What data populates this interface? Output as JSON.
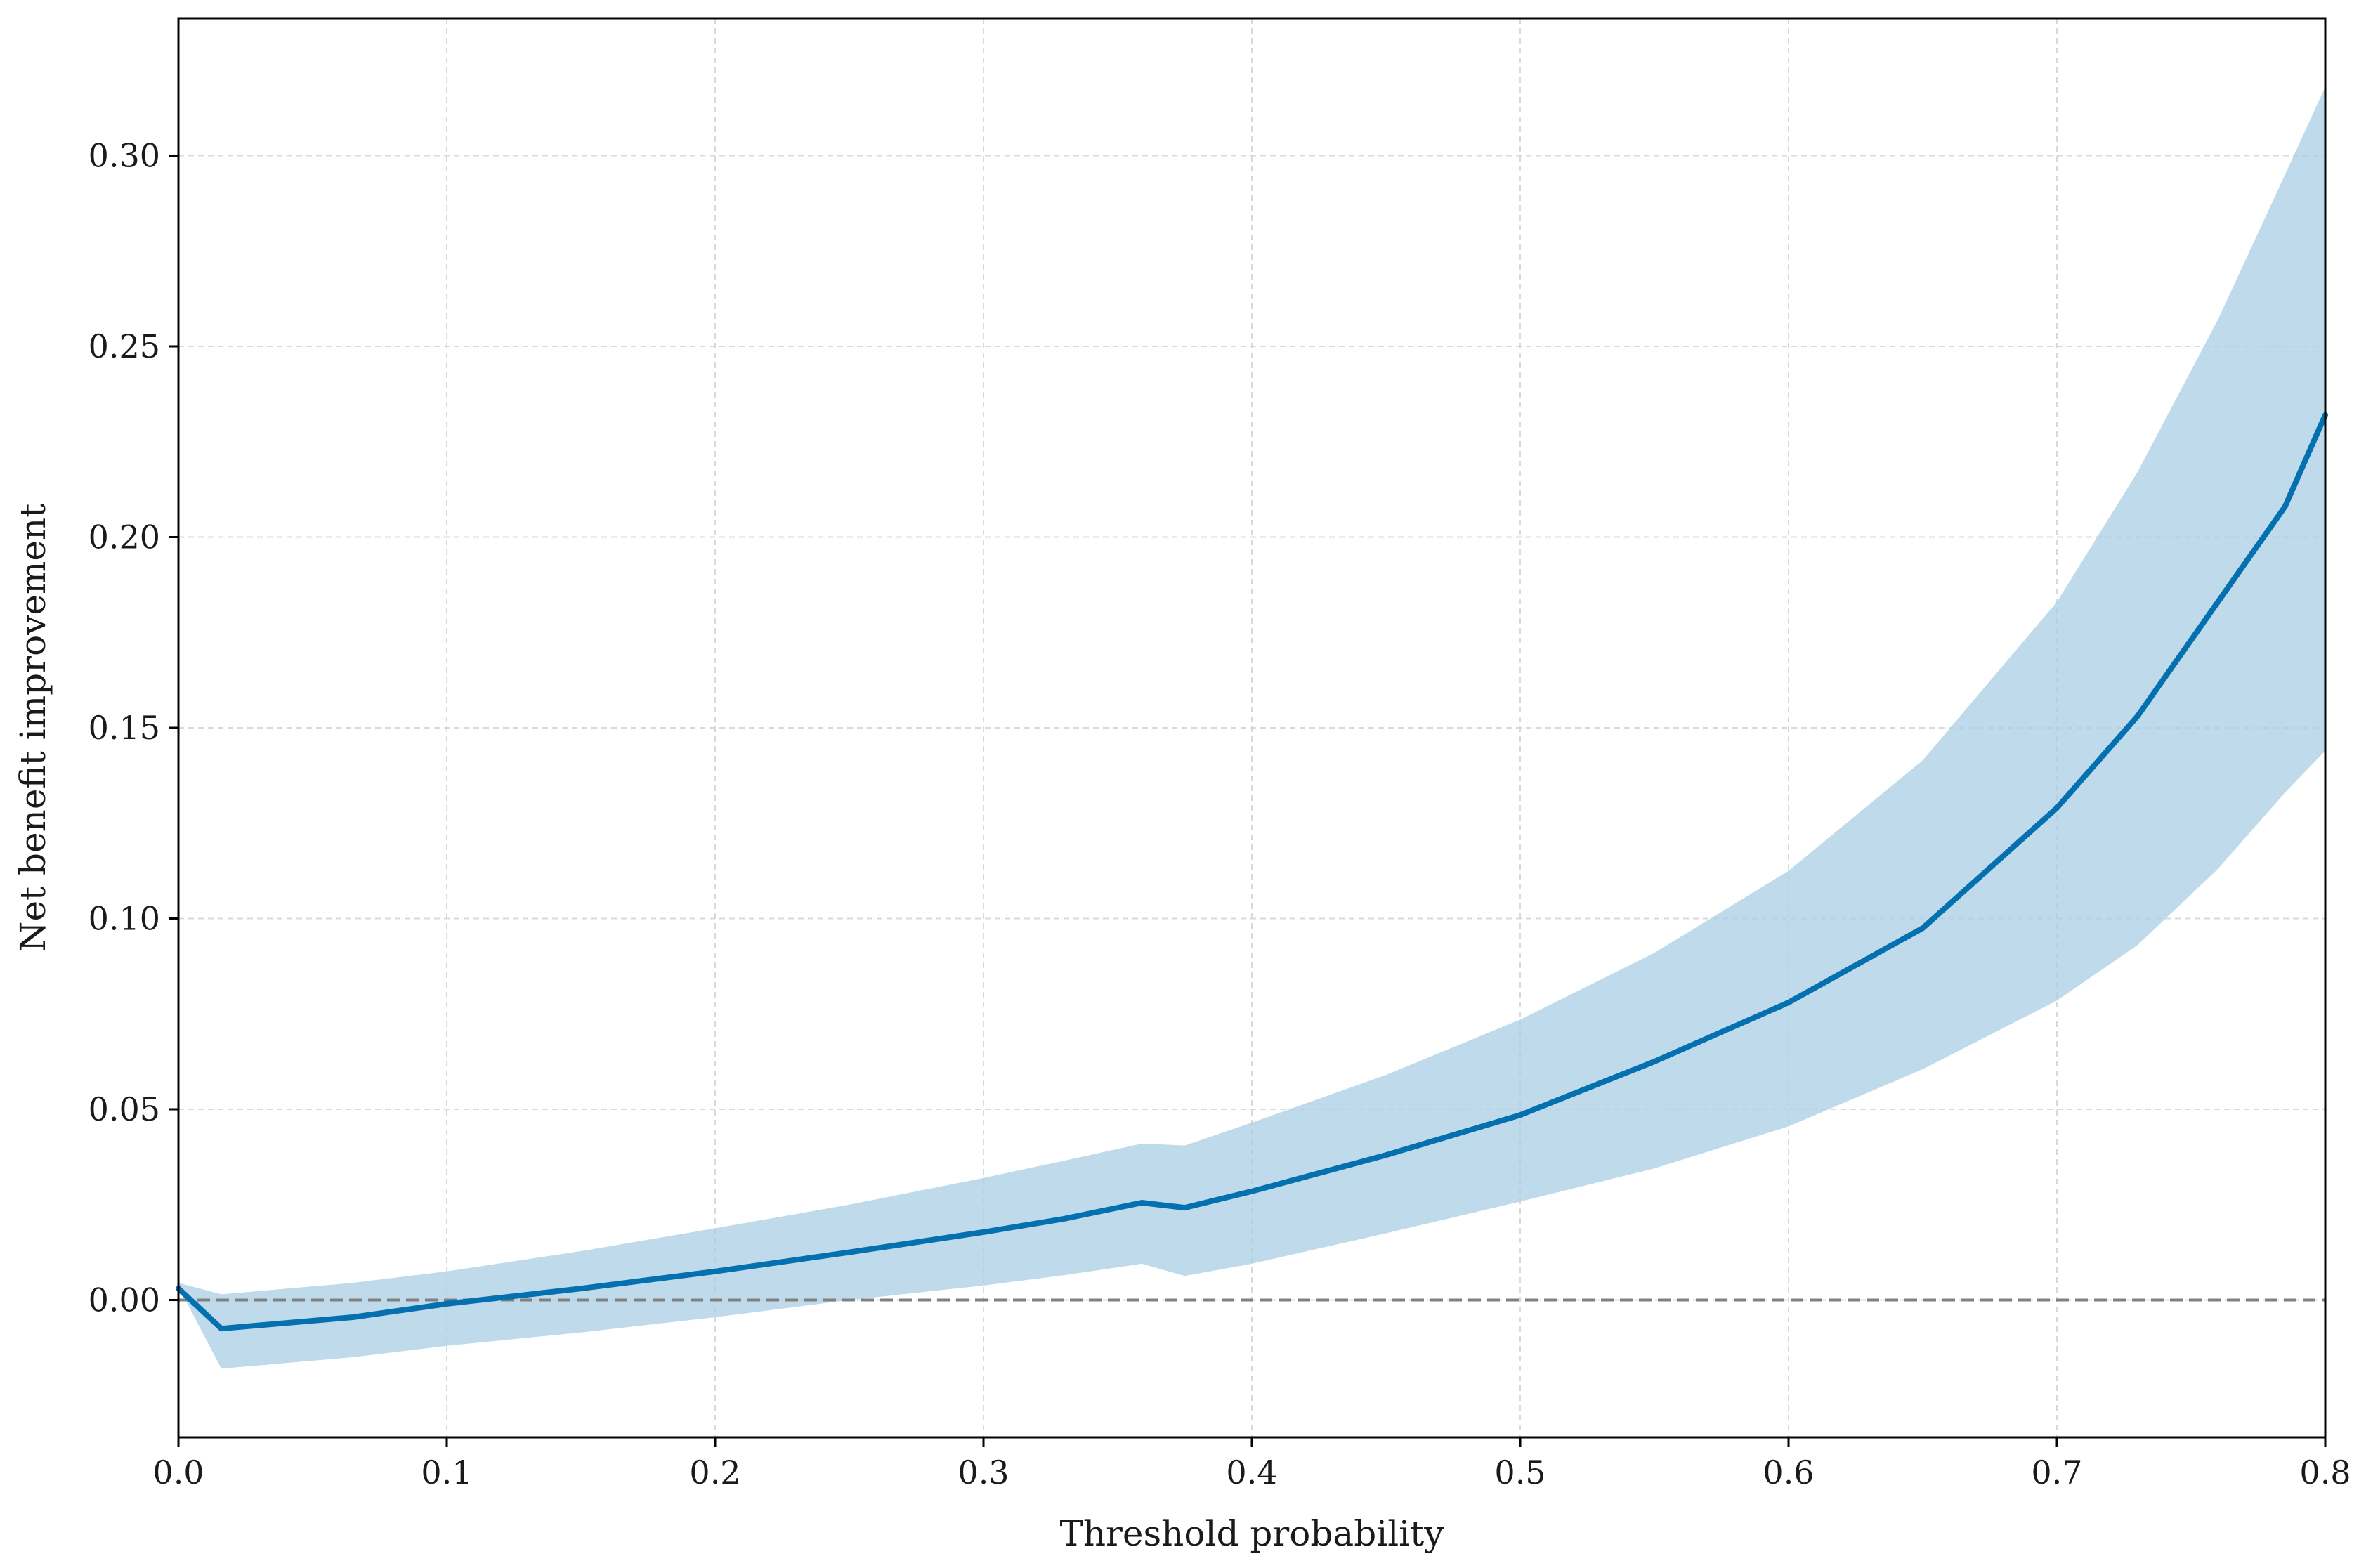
{
  "chart_data": {
    "type": "line",
    "xlabel": "Threshold probability",
    "ylabel": "Net benefit improvement",
    "xlim": [
      0.0,
      0.8
    ],
    "ylim": [
      -0.036,
      0.336
    ],
    "x_ticks": [
      "0.0",
      "0.1",
      "0.2",
      "0.3",
      "0.4",
      "0.5",
      "0.6",
      "0.7",
      "0.8"
    ],
    "y_ticks": [
      "0.00",
      "0.05",
      "0.10",
      "0.15",
      "0.20",
      "0.25",
      "0.30"
    ],
    "grid": true,
    "reference_line": {
      "y": 0.0,
      "style": "dashed",
      "color": "#808080"
    },
    "colors": {
      "line": "#0570b0",
      "band": "#a9cfe4"
    },
    "series": [
      {
        "x": [
          0.0,
          0.016,
          0.065,
          0.1,
          0.15,
          0.2,
          0.25,
          0.3,
          0.33,
          0.359,
          0.375,
          0.4,
          0.45,
          0.5,
          0.55,
          0.6,
          0.65,
          0.7,
          0.73,
          0.76,
          0.785,
          0.8
        ],
        "y": [
          0.003,
          -0.0075,
          -0.0045,
          -0.001,
          0.003,
          0.0075,
          0.0125,
          0.0178,
          0.0213,
          0.0255,
          0.0242,
          0.0285,
          0.038,
          0.0485,
          0.0625,
          0.078,
          0.0975,
          0.129,
          0.153,
          0.183,
          0.208,
          0.232
        ],
        "ci_lower": [
          0.0035,
          -0.018,
          -0.015,
          -0.012,
          -0.0085,
          -0.0045,
          0.0,
          0.0038,
          0.0065,
          0.0095,
          0.0063,
          0.0095,
          0.0175,
          0.0258,
          0.0345,
          0.0455,
          0.0605,
          0.0785,
          0.093,
          0.113,
          0.133,
          0.144
        ],
        "ci_upper": [
          0.0045,
          0.0015,
          0.0045,
          0.0075,
          0.0128,
          0.0188,
          0.025,
          0.032,
          0.0365,
          0.041,
          0.0405,
          0.0465,
          0.059,
          0.0735,
          0.091,
          0.1125,
          0.1415,
          0.183,
          0.217,
          0.257,
          0.295,
          0.318
        ]
      }
    ]
  }
}
